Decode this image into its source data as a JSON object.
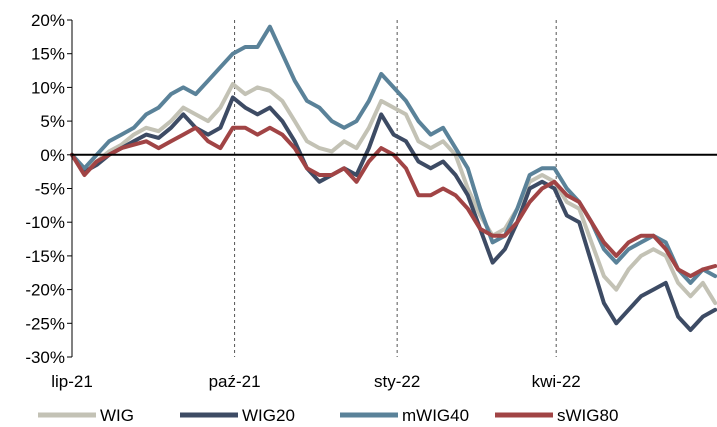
{
  "chart_data": {
    "type": "line",
    "title": "",
    "xlabel": "",
    "ylabel": "",
    "ylim": [
      -30,
      20
    ],
    "y_ticks": [
      "20%",
      "15%",
      "10%",
      "5%",
      "0%",
      "-5%",
      "-10%",
      "-15%",
      "-20%",
      "-25%",
      "-30%"
    ],
    "y_tick_values": [
      20,
      15,
      10,
      5,
      0,
      -5,
      -10,
      -15,
      -20,
      -25,
      -30
    ],
    "x_ticks": [
      "lip-21",
      "paź-21",
      "sty-22",
      "kwi-22"
    ],
    "x_tick_values": [
      "2021-07-01",
      "2021-10-01",
      "2022-01-01",
      "2022-04-01"
    ],
    "x_range": [
      "2021-07-01",
      "2022-07-01"
    ],
    "grid": "vertical dashed at x ticks",
    "legend_position": "bottom",
    "series": [
      {
        "name": "WIG",
        "color": "#c3c2b5",
        "points": [
          [
            "2021-07-01",
            0
          ],
          [
            "2021-07-08",
            -2
          ],
          [
            "2021-07-15",
            -1
          ],
          [
            "2021-07-22",
            0.5
          ],
          [
            "2021-07-29",
            1.5
          ],
          [
            "2021-08-05",
            3
          ],
          [
            "2021-08-12",
            4
          ],
          [
            "2021-08-19",
            3.5
          ],
          [
            "2021-08-26",
            5
          ],
          [
            "2021-09-02",
            7
          ],
          [
            "2021-09-09",
            6
          ],
          [
            "2021-09-16",
            5
          ],
          [
            "2021-09-23",
            7
          ],
          [
            "2021-09-30",
            10.5
          ],
          [
            "2021-10-07",
            9
          ],
          [
            "2021-10-14",
            10
          ],
          [
            "2021-10-21",
            9.5
          ],
          [
            "2021-10-28",
            8
          ],
          [
            "2021-11-04",
            5
          ],
          [
            "2021-11-11",
            2
          ],
          [
            "2021-11-18",
            1
          ],
          [
            "2021-11-25",
            0.5
          ],
          [
            "2021-12-02",
            2
          ],
          [
            "2021-12-09",
            1
          ],
          [
            "2021-12-16",
            4
          ],
          [
            "2021-12-23",
            8
          ],
          [
            "2021-12-30",
            7
          ],
          [
            "2022-01-06",
            6
          ],
          [
            "2022-01-13",
            2
          ],
          [
            "2022-01-20",
            1
          ],
          [
            "2022-01-27",
            2
          ],
          [
            "2022-02-03",
            0
          ],
          [
            "2022-02-10",
            -5
          ],
          [
            "2022-02-17",
            -9
          ],
          [
            "2022-02-24",
            -12
          ],
          [
            "2022-03-03",
            -11
          ],
          [
            "2022-03-10",
            -8
          ],
          [
            "2022-03-17",
            -4
          ],
          [
            "2022-03-24",
            -3
          ],
          [
            "2022-03-31",
            -4
          ],
          [
            "2022-04-07",
            -7
          ],
          [
            "2022-04-14",
            -8
          ],
          [
            "2022-04-21",
            -13
          ],
          [
            "2022-04-28",
            -18
          ],
          [
            "2022-05-05",
            -20
          ],
          [
            "2022-05-12",
            -17
          ],
          [
            "2022-05-19",
            -15
          ],
          [
            "2022-05-26",
            -14
          ],
          [
            "2022-06-02",
            -15
          ],
          [
            "2022-06-09",
            -19
          ],
          [
            "2022-06-16",
            -21
          ],
          [
            "2022-06-23",
            -19
          ],
          [
            "2022-06-30",
            -22
          ]
        ]
      },
      {
        "name": "WIG20",
        "color": "#3d4b64",
        "points": [
          [
            "2021-07-01",
            0
          ],
          [
            "2021-07-08",
            -2.5
          ],
          [
            "2021-07-15",
            -1.5
          ],
          [
            "2021-07-22",
            0
          ],
          [
            "2021-07-29",
            1
          ],
          [
            "2021-08-05",
            2
          ],
          [
            "2021-08-12",
            3
          ],
          [
            "2021-08-19",
            2.5
          ],
          [
            "2021-08-26",
            4
          ],
          [
            "2021-09-02",
            6
          ],
          [
            "2021-09-09",
            4
          ],
          [
            "2021-09-16",
            3
          ],
          [
            "2021-09-23",
            4
          ],
          [
            "2021-09-30",
            8.5
          ],
          [
            "2021-10-07",
            7
          ],
          [
            "2021-10-14",
            6
          ],
          [
            "2021-10-21",
            7
          ],
          [
            "2021-10-28",
            5
          ],
          [
            "2021-11-04",
            2
          ],
          [
            "2021-11-11",
            -2
          ],
          [
            "2021-11-18",
            -4
          ],
          [
            "2021-11-25",
            -3
          ],
          [
            "2021-12-02",
            -2
          ],
          [
            "2021-12-09",
            -3
          ],
          [
            "2021-12-16",
            1
          ],
          [
            "2021-12-23",
            6
          ],
          [
            "2021-12-30",
            3
          ],
          [
            "2022-01-06",
            2
          ],
          [
            "2022-01-13",
            -1
          ],
          [
            "2022-01-20",
            -2
          ],
          [
            "2022-01-27",
            -1
          ],
          [
            "2022-02-03",
            -3
          ],
          [
            "2022-02-10",
            -6
          ],
          [
            "2022-02-17",
            -11
          ],
          [
            "2022-02-24",
            -16
          ],
          [
            "2022-03-03",
            -14
          ],
          [
            "2022-03-10",
            -10
          ],
          [
            "2022-03-17",
            -5
          ],
          [
            "2022-03-24",
            -4
          ],
          [
            "2022-03-31",
            -5
          ],
          [
            "2022-04-07",
            -9
          ],
          [
            "2022-04-14",
            -10
          ],
          [
            "2022-04-21",
            -16
          ],
          [
            "2022-04-28",
            -22
          ],
          [
            "2022-05-05",
            -25
          ],
          [
            "2022-05-12",
            -23
          ],
          [
            "2022-05-19",
            -21
          ],
          [
            "2022-05-26",
            -20
          ],
          [
            "2022-06-02",
            -19
          ],
          [
            "2022-06-09",
            -24
          ],
          [
            "2022-06-16",
            -26
          ],
          [
            "2022-06-23",
            -24
          ],
          [
            "2022-06-30",
            -23
          ]
        ]
      },
      {
        "name": "mWIG40",
        "color": "#5a8299",
        "points": [
          [
            "2021-07-01",
            0
          ],
          [
            "2021-07-08",
            -2
          ],
          [
            "2021-07-15",
            0
          ],
          [
            "2021-07-22",
            2
          ],
          [
            "2021-07-29",
            3
          ],
          [
            "2021-08-05",
            4
          ],
          [
            "2021-08-12",
            6
          ],
          [
            "2021-08-19",
            7
          ],
          [
            "2021-08-26",
            9
          ],
          [
            "2021-09-02",
            10
          ],
          [
            "2021-09-09",
            9
          ],
          [
            "2021-09-16",
            11
          ],
          [
            "2021-09-23",
            13
          ],
          [
            "2021-09-30",
            15
          ],
          [
            "2021-10-07",
            16
          ],
          [
            "2021-10-14",
            16
          ],
          [
            "2021-10-21",
            19
          ],
          [
            "2021-10-28",
            15
          ],
          [
            "2021-11-04",
            11
          ],
          [
            "2021-11-11",
            8
          ],
          [
            "2021-11-18",
            7
          ],
          [
            "2021-11-25",
            5
          ],
          [
            "2021-12-02",
            4
          ],
          [
            "2021-12-09",
            5
          ],
          [
            "2021-12-16",
            8
          ],
          [
            "2021-12-23",
            12
          ],
          [
            "2021-12-30",
            10
          ],
          [
            "2022-01-06",
            8
          ],
          [
            "2022-01-13",
            5
          ],
          [
            "2022-01-20",
            3
          ],
          [
            "2022-01-27",
            4
          ],
          [
            "2022-02-03",
            1
          ],
          [
            "2022-02-10",
            -2
          ],
          [
            "2022-02-17",
            -8
          ],
          [
            "2022-02-24",
            -13
          ],
          [
            "2022-03-03",
            -12
          ],
          [
            "2022-03-10",
            -8
          ],
          [
            "2022-03-17",
            -3
          ],
          [
            "2022-03-24",
            -2
          ],
          [
            "2022-03-31",
            -2
          ],
          [
            "2022-04-07",
            -5
          ],
          [
            "2022-04-14",
            -7
          ],
          [
            "2022-04-21",
            -10
          ],
          [
            "2022-04-28",
            -14
          ],
          [
            "2022-05-05",
            -16
          ],
          [
            "2022-05-12",
            -14
          ],
          [
            "2022-05-19",
            -13
          ],
          [
            "2022-05-26",
            -12
          ],
          [
            "2022-06-02",
            -13
          ],
          [
            "2022-06-09",
            -17
          ],
          [
            "2022-06-16",
            -19
          ],
          [
            "2022-06-23",
            -17
          ],
          [
            "2022-06-30",
            -18
          ]
        ]
      },
      {
        "name": "sWIG80",
        "color": "#a14445",
        "points": [
          [
            "2021-07-01",
            0
          ],
          [
            "2021-07-08",
            -3
          ],
          [
            "2021-07-15",
            -1
          ],
          [
            "2021-07-22",
            0
          ],
          [
            "2021-07-29",
            1
          ],
          [
            "2021-08-05",
            1.5
          ],
          [
            "2021-08-12",
            2
          ],
          [
            "2021-08-19",
            1
          ],
          [
            "2021-08-26",
            2
          ],
          [
            "2021-09-02",
            3
          ],
          [
            "2021-09-09",
            4
          ],
          [
            "2021-09-16",
            2
          ],
          [
            "2021-09-23",
            1
          ],
          [
            "2021-09-30",
            4
          ],
          [
            "2021-10-07",
            4
          ],
          [
            "2021-10-14",
            3
          ],
          [
            "2021-10-21",
            4
          ],
          [
            "2021-10-28",
            3
          ],
          [
            "2021-11-04",
            1
          ],
          [
            "2021-11-11",
            -2
          ],
          [
            "2021-11-18",
            -3
          ],
          [
            "2021-11-25",
            -3
          ],
          [
            "2021-12-02",
            -2
          ],
          [
            "2021-12-09",
            -4
          ],
          [
            "2021-12-16",
            -1
          ],
          [
            "2021-12-23",
            1
          ],
          [
            "2021-12-30",
            0
          ],
          [
            "2022-01-06",
            -2
          ],
          [
            "2022-01-13",
            -6
          ],
          [
            "2022-01-20",
            -6
          ],
          [
            "2022-01-27",
            -5
          ],
          [
            "2022-02-03",
            -6
          ],
          [
            "2022-02-10",
            -8
          ],
          [
            "2022-02-17",
            -11
          ],
          [
            "2022-02-24",
            -12
          ],
          [
            "2022-03-03",
            -12
          ],
          [
            "2022-03-10",
            -10
          ],
          [
            "2022-03-17",
            -7
          ],
          [
            "2022-03-24",
            -5
          ],
          [
            "2022-03-31",
            -4
          ],
          [
            "2022-04-07",
            -6
          ],
          [
            "2022-04-14",
            -7
          ],
          [
            "2022-04-21",
            -10
          ],
          [
            "2022-04-28",
            -13
          ],
          [
            "2022-05-05",
            -15
          ],
          [
            "2022-05-12",
            -13
          ],
          [
            "2022-05-19",
            -12
          ],
          [
            "2022-05-26",
            -12
          ],
          [
            "2022-06-02",
            -14
          ],
          [
            "2022-06-09",
            -17
          ],
          [
            "2022-06-16",
            -18
          ],
          [
            "2022-06-23",
            -17
          ],
          [
            "2022-06-30",
            -16.5
          ]
        ]
      }
    ]
  }
}
